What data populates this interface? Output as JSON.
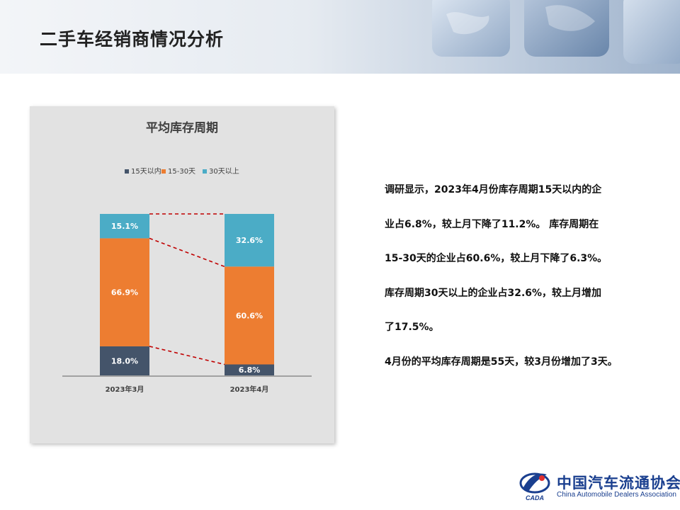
{
  "page": {
    "title": "二手车经销商情况分析"
  },
  "chart_data": {
    "type": "bar",
    "stacked": true,
    "normalized_percent": true,
    "title": "平均库存周期",
    "categories": [
      "2023年3月",
      "2023年4月"
    ],
    "series": [
      {
        "name": "15天以内",
        "values": [
          18.0,
          6.8
        ],
        "labels": [
          "18.0%",
          "6.8%"
        ],
        "color": "#44546a"
      },
      {
        "name": "15-30天",
        "values": [
          66.9,
          60.6
        ],
        "labels": [
          "66.9%",
          "60.6%"
        ],
        "color": "#ed7d31"
      },
      {
        "name": "30天以上",
        "values": [
          15.1,
          32.6
        ],
        "labels": [
          "15.1%",
          "32.6%"
        ],
        "color": "#4bacc6"
      }
    ],
    "ylim": [
      0,
      100
    ],
    "legend": "top",
    "grid": false,
    "series_lines": {
      "color": "#c00000",
      "style": "dashed"
    },
    "background": "#e2e2e2"
  },
  "analysis": {
    "lines": [
      "调研显示，2023年4月份库存周期15天以内的企",
      "业占6.8%，较上月下降了11.2%。 库存周期在",
      "15-30天的企业占60.6%，较上月下降了6.3%。",
      "库存周期30天以上的企业占32.6%，较上月增加",
      "了17.5%。",
      "4月份的平均库存周期是55天，较3月份增加了3天。"
    ]
  },
  "footer": {
    "logo_abbr": "CADA",
    "logo_name_cn": "中国汽车流通协会",
    "logo_name_en": "China Automobile Dealers Association"
  }
}
